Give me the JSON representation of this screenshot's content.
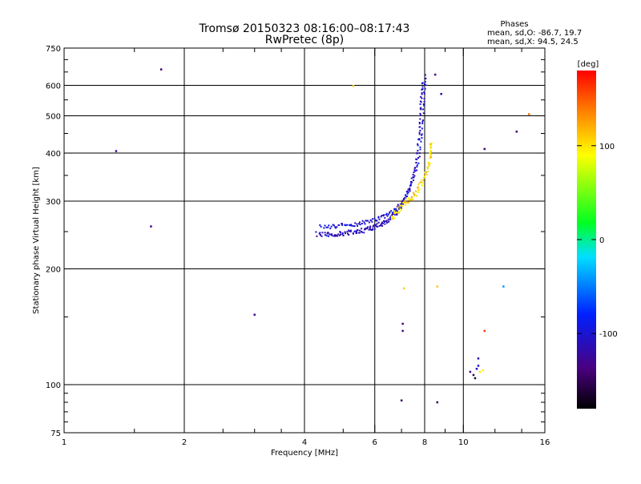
{
  "chart_data": {
    "type": "scatter",
    "title": "Tromsø 20150323 08:16:00–08:17:43",
    "subtitle": "RwPretec (8p)",
    "xlabel": "Frequency [MHz]",
    "ylabel": "Stationary phase Virtual Height [km]",
    "xscale": "log",
    "yscale": "log",
    "xlim": [
      1,
      16
    ],
    "ylim": [
      75,
      750
    ],
    "xticks": [
      1,
      2,
      4,
      6,
      8,
      10,
      16
    ],
    "xtick_labels": [
      "1",
      "2",
      "4",
      "6",
      "8",
      "10",
      "16"
    ],
    "yticks": [
      75,
      100,
      200,
      300,
      400,
      500,
      600,
      750
    ],
    "ytick_labels": [
      "75",
      "100",
      "200",
      "300",
      "400",
      "500",
      "600",
      "750"
    ],
    "grid": true,
    "stats": {
      "header": "Phases",
      "line_o": "mean, sd,O: -86.7, 19.7",
      "line_x": "mean, sd,X:  94.5, 24.5"
    },
    "colorbar": {
      "label": "[deg]",
      "range": [
        -180,
        180
      ],
      "ticks": [
        100,
        0,
        -100
      ],
      "tick_labels": [
        "100",
        "0",
        "-100"
      ]
    },
    "o_trace": [
      [
        4.3,
        247
      ],
      [
        4.5,
        245
      ],
      [
        4.7,
        246
      ],
      [
        4.9,
        247
      ],
      [
        5.1,
        248
      ],
      [
        5.3,
        249
      ],
      [
        5.5,
        251
      ],
      [
        5.7,
        253
      ],
      [
        5.9,
        256
      ],
      [
        6.1,
        259
      ],
      [
        6.3,
        263
      ],
      [
        6.5,
        268
      ],
      [
        6.7,
        275
      ],
      [
        6.9,
        285
      ],
      [
        7.1,
        300
      ],
      [
        7.3,
        320
      ],
      [
        7.5,
        350
      ],
      [
        7.65,
        390
      ],
      [
        7.75,
        440
      ],
      [
        7.8,
        500
      ],
      [
        7.85,
        560
      ],
      [
        7.9,
        620
      ]
    ],
    "x_trace": [
      [
        6.6,
        270
      ],
      [
        6.8,
        280
      ],
      [
        7.0,
        290
      ],
      [
        7.2,
        298
      ],
      [
        7.4,
        305
      ],
      [
        7.6,
        315
      ],
      [
        7.8,
        330
      ],
      [
        8.0,
        345
      ],
      [
        8.15,
        365
      ],
      [
        8.25,
        385
      ],
      [
        8.3,
        400
      ],
      [
        8.3,
        430
      ]
    ],
    "scattered_points": [
      {
        "f": 1.35,
        "h": 405,
        "phase": -125
      },
      {
        "f": 1.75,
        "h": 660,
        "phase": -145
      },
      {
        "f": 1.65,
        "h": 258,
        "phase": -125
      },
      {
        "f": 3.0,
        "h": 152,
        "phase": -130
      },
      {
        "f": 5.3,
        "h": 598,
        "phase": 110
      },
      {
        "f": 7.1,
        "h": 178,
        "phase": 105
      },
      {
        "f": 7.05,
        "h": 144,
        "phase": -140
      },
      {
        "f": 7.05,
        "h": 138,
        "phase": -130
      },
      {
        "f": 7.0,
        "h": 91,
        "phase": -150
      },
      {
        "f": 8.6,
        "h": 180,
        "phase": 110
      },
      {
        "f": 8.6,
        "h": 90,
        "phase": -150
      },
      {
        "f": 8.5,
        "h": 640,
        "phase": -130
      },
      {
        "f": 8.8,
        "h": 570,
        "phase": -120
      },
      {
        "f": 11.3,
        "h": 410,
        "phase": -135
      },
      {
        "f": 11.3,
        "h": 138,
        "phase": 160
      },
      {
        "f": 12.6,
        "h": 180,
        "phase": -40
      },
      {
        "f": 14.6,
        "h": 505,
        "phase": 140
      },
      {
        "f": 13.6,
        "h": 455,
        "phase": -140
      },
      {
        "f": 10.4,
        "h": 108,
        "phase": -130
      },
      {
        "f": 10.6,
        "h": 106,
        "phase": -150
      },
      {
        "f": 10.8,
        "h": 110,
        "phase": -110
      },
      {
        "f": 10.7,
        "h": 104,
        "phase": -160
      },
      {
        "f": 11.0,
        "h": 108,
        "phase": 100
      },
      {
        "f": 11.2,
        "h": 109,
        "phase": 95
      },
      {
        "f": 10.9,
        "h": 112,
        "phase": -100
      },
      {
        "f": 10.9,
        "h": 117,
        "phase": -110
      }
    ]
  }
}
